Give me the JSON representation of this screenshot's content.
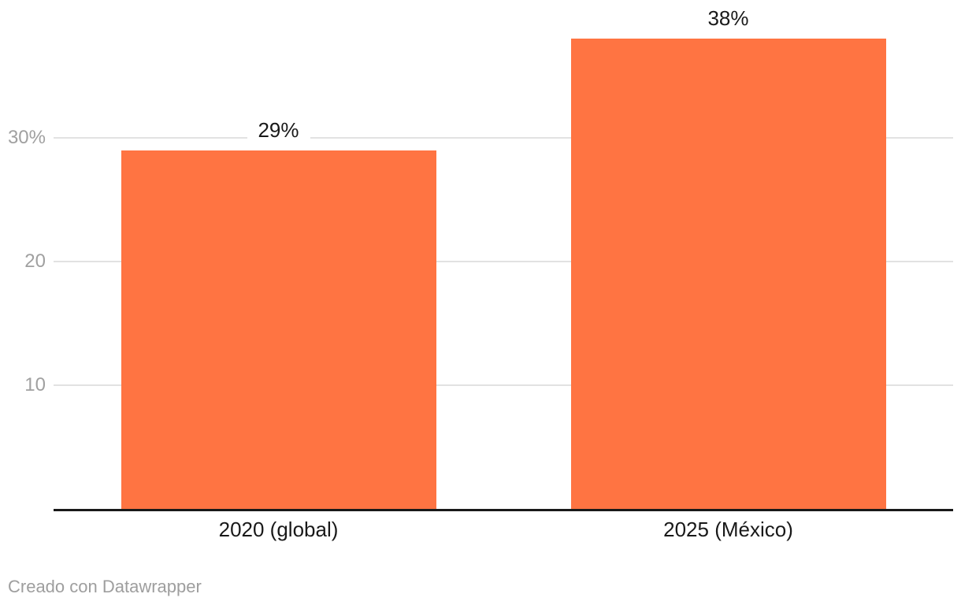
{
  "chart_data": {
    "type": "bar",
    "categories": [
      "2020 (global)",
      "2025 (México)"
    ],
    "values": [
      29,
      38
    ],
    "value_labels": [
      "29%",
      "38%"
    ],
    "series_name": "",
    "title": "",
    "xlabel": "",
    "ylabel": "",
    "ylim": [
      0,
      40
    ],
    "yticks": [
      {
        "value": 10,
        "label": "10"
      },
      {
        "value": 20,
        "label": "20"
      },
      {
        "value": 30,
        "label": "30%"
      }
    ],
    "grid": true,
    "legend_position": "none",
    "bar_color": "#ff7442"
  },
  "colors": {
    "bar": "#ff7442",
    "gridline": "#e2e2e2",
    "baseline": "#191919",
    "tick_label": "#a0a0a0",
    "value_label": "#191919",
    "category_label": "#191919",
    "footer_text": "#9e9e9e",
    "background": "#ffffff"
  },
  "footer": {
    "credit": "Creado con Datawrapper"
  }
}
